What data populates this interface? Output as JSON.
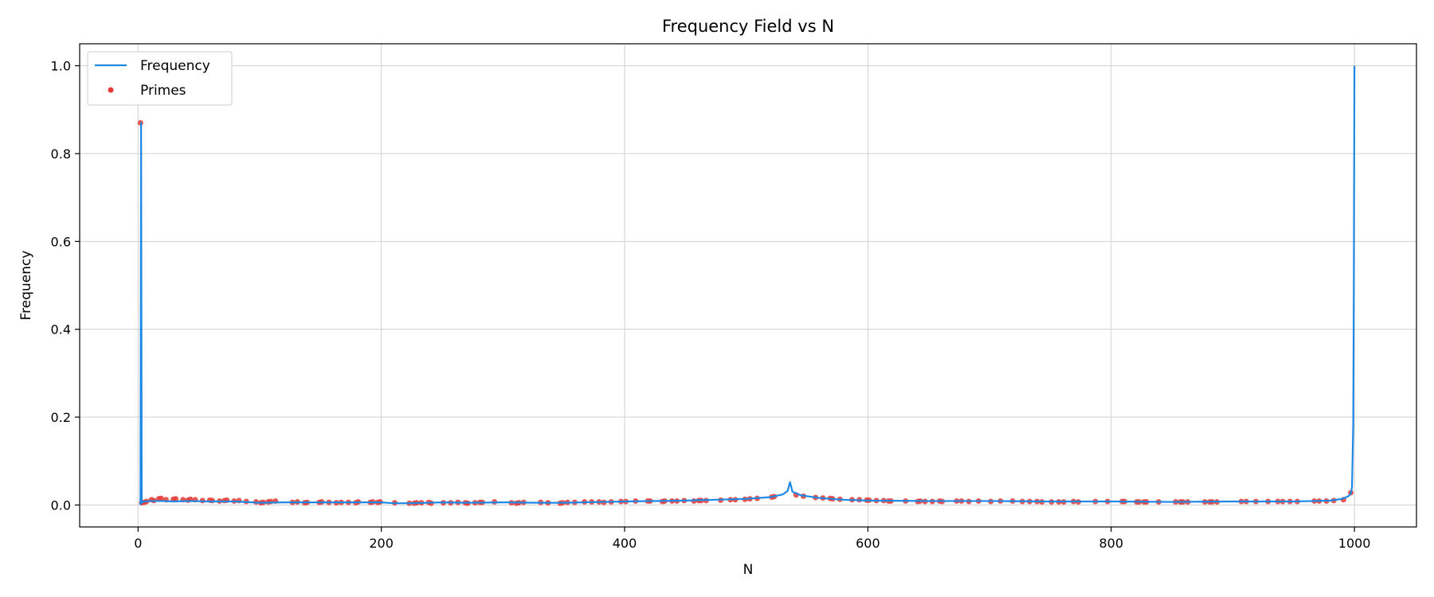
{
  "chart_data": {
    "type": "line",
    "title": "Frequency Field vs N",
    "xlabel": "N",
    "ylabel": "Frequency",
    "xlim": [
      -48,
      1051
    ],
    "ylim": [
      -0.05,
      1.05
    ],
    "xticks": [
      0,
      200,
      400,
      600,
      800,
      1000
    ],
    "yticks": [
      0.0,
      0.2,
      0.4,
      0.6,
      0.8,
      1.0
    ],
    "xtick_labels": [
      "0",
      "200",
      "400",
      "600",
      "800",
      "1000"
    ],
    "ytick_labels": [
      "0.0",
      "0.2",
      "0.4",
      "0.6",
      "0.8",
      "1.0"
    ],
    "grid": true,
    "legend_position": "top-left",
    "colors": {
      "line": "#1e88e5",
      "points": "#e53935",
      "grid": "#d0d0d0"
    },
    "series": [
      {
        "name": "Frequency",
        "kind": "line",
        "x": [
          2,
          2.5,
          3,
          5,
          10,
          20,
          30,
          40,
          60,
          80,
          100,
          120,
          150,
          180,
          200,
          210,
          225,
          250,
          270,
          300,
          330,
          350,
          400,
          450,
          500,
          520,
          530,
          534,
          536,
          538,
          545,
          560,
          580,
          600,
          650,
          700,
          750,
          800,
          850,
          900,
          950,
          980,
          990,
          995,
          997,
          998,
          999,
          999.5,
          1000
        ],
        "y": [
          0.0,
          0.87,
          0.005,
          0.008,
          0.009,
          0.009,
          0.008,
          0.009,
          0.008,
          0.008,
          0.005,
          0.006,
          0.006,
          0.006,
          0.006,
          0.004,
          0.004,
          0.006,
          0.005,
          0.006,
          0.005,
          0.005,
          0.008,
          0.01,
          0.014,
          0.018,
          0.024,
          0.032,
          0.052,
          0.03,
          0.022,
          0.016,
          0.012,
          0.01,
          0.009,
          0.009,
          0.008,
          0.008,
          0.007,
          0.008,
          0.008,
          0.01,
          0.014,
          0.02,
          0.026,
          0.04,
          0.18,
          0.5,
          1.0
        ]
      },
      {
        "name": "Primes",
        "kind": "scatter",
        "x": [
          2,
          3,
          5,
          7,
          11,
          13,
          17,
          19,
          23,
          29,
          31,
          37,
          41,
          43,
          47,
          53,
          59,
          61,
          67,
          71,
          73,
          79,
          83,
          89,
          97,
          101,
          103,
          107,
          109,
          113,
          127,
          131,
          137,
          139,
          149,
          151,
          157,
          163,
          167,
          173,
          179,
          181,
          191,
          193,
          197,
          199,
          211,
          223,
          227,
          229,
          233,
          239,
          241,
          251,
          257,
          263,
          269,
          271,
          277,
          281,
          283,
          293,
          307,
          311,
          313,
          317,
          331,
          337,
          347,
          349,
          353,
          359,
          367,
          373,
          379,
          383,
          389,
          397,
          401,
          409,
          419,
          421,
          431,
          433,
          439,
          443,
          449,
          457,
          461,
          463,
          467,
          479,
          487,
          491,
          499,
          503,
          509,
          521,
          523,
          541,
          547,
          557,
          563,
          569,
          571,
          577,
          587,
          593,
          599,
          601,
          607,
          613,
          617,
          619,
          631,
          641,
          643,
          647,
          653,
          659,
          661,
          673,
          677,
          683,
          691,
          701,
          709,
          719,
          727,
          733,
          739,
          743,
          751,
          757,
          761,
          769,
          773,
          787,
          797,
          809,
          811,
          821,
          823,
          827,
          829,
          839,
          853,
          857,
          859,
          863,
          877,
          881,
          883,
          887,
          907,
          911,
          919,
          929,
          937,
          941,
          947,
          953,
          967,
          971,
          977,
          983,
          991,
          997
        ],
        "y": [
          0.87,
          0.005,
          0.006,
          0.008,
          0.012,
          0.01,
          0.014,
          0.015,
          0.012,
          0.013,
          0.014,
          0.012,
          0.011,
          0.013,
          0.012,
          0.01,
          0.011,
          0.01,
          0.009,
          0.01,
          0.011,
          0.009,
          0.01,
          0.008,
          0.007,
          0.005,
          0.006,
          0.007,
          0.008,
          0.009,
          0.006,
          0.007,
          0.005,
          0.006,
          0.006,
          0.007,
          0.006,
          0.005,
          0.006,
          0.006,
          0.005,
          0.007,
          0.006,
          0.007,
          0.006,
          0.007,
          0.005,
          0.004,
          0.004,
          0.005,
          0.005,
          0.006,
          0.004,
          0.005,
          0.005,
          0.006,
          0.005,
          0.004,
          0.005,
          0.006,
          0.006,
          0.007,
          0.005,
          0.004,
          0.005,
          0.006,
          0.006,
          0.005,
          0.004,
          0.005,
          0.006,
          0.006,
          0.007,
          0.007,
          0.007,
          0.006,
          0.007,
          0.008,
          0.008,
          0.009,
          0.009,
          0.009,
          0.008,
          0.009,
          0.009,
          0.009,
          0.01,
          0.009,
          0.01,
          0.01,
          0.01,
          0.011,
          0.012,
          0.012,
          0.013,
          0.014,
          0.015,
          0.018,
          0.019,
          0.023,
          0.02,
          0.017,
          0.016,
          0.015,
          0.014,
          0.013,
          0.012,
          0.012,
          0.011,
          0.011,
          0.01,
          0.01,
          0.009,
          0.009,
          0.009,
          0.008,
          0.009,
          0.008,
          0.008,
          0.009,
          0.008,
          0.009,
          0.009,
          0.008,
          0.009,
          0.008,
          0.009,
          0.009,
          0.008,
          0.008,
          0.008,
          0.007,
          0.007,
          0.007,
          0.007,
          0.008,
          0.007,
          0.008,
          0.008,
          0.008,
          0.008,
          0.007,
          0.007,
          0.007,
          0.007,
          0.007,
          0.007,
          0.007,
          0.007,
          0.007,
          0.007,
          0.007,
          0.007,
          0.007,
          0.008,
          0.008,
          0.008,
          0.008,
          0.008,
          0.008,
          0.008,
          0.008,
          0.009,
          0.009,
          0.009,
          0.01,
          0.012,
          0.028
        ]
      }
    ]
  }
}
